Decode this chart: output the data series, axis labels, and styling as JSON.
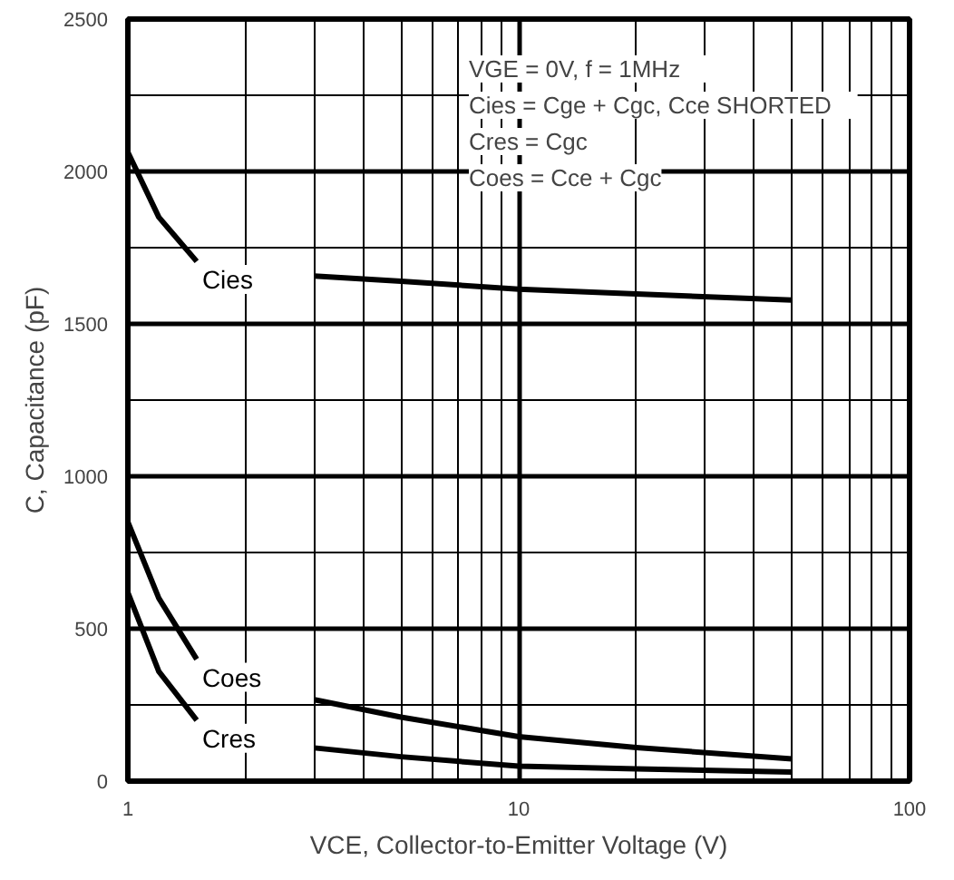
{
  "chart_data": {
    "type": "line",
    "xlabel": "VCE, Collector-to-Emitter Voltage (V)",
    "ylabel": "C, Capacitance (pF)",
    "annotations": [
      "VGE = 0V,       f = 1MHz",
      "Cies = Cge + Cgc,   Cce   SHORTED",
      "Cres = Cgc",
      "Coes = Cce + Cgc"
    ],
    "x": [
      1,
      1.2,
      1.5,
      2.7,
      3,
      5,
      10,
      20,
      50
    ],
    "series": [
      {
        "name": "Cies",
        "color": "#000000",
        "values": [
          2063,
          1850,
          1705,
          null,
          1657,
          1640,
          1614,
          1598,
          1578
        ]
      },
      {
        "name": "Coes",
        "color": "#000000",
        "values": [
          850,
          600,
          400,
          null,
          267,
          210,
          146,
          110,
          73
        ]
      },
      {
        "name": "Cres",
        "color": "#000000",
        "values": [
          619,
          360,
          200,
          null,
          109,
          80,
          49,
          40,
          30
        ]
      }
    ],
    "log": "x",
    "xlim": [
      1,
      100
    ],
    "xticks": [
      1,
      10,
      100
    ],
    "ylim": [
      0,
      2500
    ],
    "yticks": [
      0,
      500,
      1000,
      1500,
      2000,
      2500
    ],
    "grid": true,
    "marker": "none",
    "line_style": "solid"
  }
}
